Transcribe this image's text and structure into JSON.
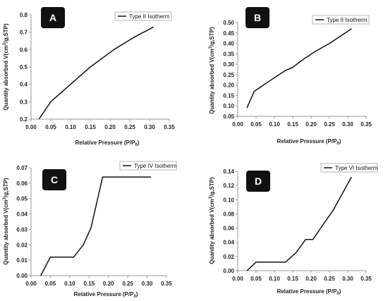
{
  "chart_data": [
    {
      "type": "line",
      "panel_label": "A",
      "series": [
        {
          "name": "Type II Isotherm",
          "x": [
            0.02,
            0.05,
            0.08,
            0.11,
            0.15,
            0.21,
            0.26,
            0.31
          ],
          "y": [
            0.2,
            0.3,
            0.36,
            0.42,
            0.5,
            0.6,
            0.67,
            0.73
          ]
        }
      ],
      "xlabel_main": "Relative Pressure (P/P",
      "xlabel_sub": "0",
      "xlabel_end": ")",
      "ylabel_a": "Quantity absorbed V(cm",
      "ylabel_sup": "3",
      "ylabel_b": "/g,STP)",
      "xlim": [
        0,
        0.35
      ],
      "ylim": [
        0.2,
        0.8
      ],
      "xticks": [
        "0.00",
        "0.05",
        "0.10",
        "0.15",
        "0.20",
        "0.25",
        "0.30",
        "0.35"
      ],
      "yticks": [
        "0.2",
        "0.3",
        "0.4",
        "0.5",
        "0.6",
        "0.7",
        "0.8"
      ],
      "legend_position": "top-right"
    },
    {
      "type": "line",
      "panel_label": "B",
      "series": [
        {
          "name": "Type II Isotherm",
          "x": [
            0.025,
            0.045,
            0.07,
            0.1,
            0.13,
            0.15,
            0.18,
            0.21,
            0.25,
            0.31
          ],
          "y": [
            0.09,
            0.17,
            0.2,
            0.235,
            0.27,
            0.285,
            0.325,
            0.36,
            0.4,
            0.47
          ]
        }
      ],
      "xlabel_main": "Relative Pressure (P/P",
      "xlabel_sub": "0",
      "xlabel_end": ")",
      "ylabel_a": "Quantity absorbed V(cm",
      "ylabel_sup": "3",
      "ylabel_b": "/g,STP)",
      "xlim": [
        0,
        0.35
      ],
      "ylim": [
        0.05,
        0.5
      ],
      "xticks": [
        "0.00",
        "0.05",
        "0.10",
        "0.15",
        "0.20",
        "0.25",
        "0.30",
        "0.35"
      ],
      "yticks": [
        "0.05",
        "0.10",
        "0.15",
        "0.20",
        "0.25",
        "0.30",
        "0.35",
        "0.40",
        "0.45",
        "0.50"
      ],
      "legend_position": "top-right"
    },
    {
      "type": "line",
      "panel_label": "C",
      "series": [
        {
          "name": "Type IV Isotherm",
          "x": [
            0.025,
            0.05,
            0.08,
            0.11,
            0.135,
            0.155,
            0.185,
            0.31
          ],
          "y": [
            0,
            0.012,
            0.012,
            0.012,
            0.02,
            0.031,
            0.064,
            0.064
          ]
        }
      ],
      "xlabel_main": "Relative Pressure (P/P",
      "xlabel_sub": "0",
      "xlabel_end": ")",
      "ylabel_a": "Quantity absorbed V(cm",
      "ylabel_sup": "3",
      "ylabel_b": "/g,STP)",
      "xlim": [
        0,
        0.35
      ],
      "ylim": [
        0,
        0.07
      ],
      "xticks": [
        "0.00",
        "0.05",
        "0.10",
        "0.15",
        "0.20",
        "0.25",
        "0.30",
        "0.35"
      ],
      "yticks": [
        "0.00",
        "0.01",
        "0.02",
        "0.03",
        "0.04",
        "0.05",
        "0.06",
        "0.07"
      ],
      "legend_position": "top-right"
    },
    {
      "type": "line",
      "panel_label": "D",
      "series": [
        {
          "name": "Type VI Isotherm",
          "x": [
            0.025,
            0.05,
            0.08,
            0.13,
            0.16,
            0.185,
            0.205,
            0.23,
            0.26,
            0.31
          ],
          "y": [
            0,
            0.012,
            0.012,
            0.012,
            0.026,
            0.044,
            0.044,
            0.063,
            0.085,
            0.132
          ]
        }
      ],
      "xlabel_main": "Relative Pressure (P/P",
      "xlabel_sub": "0",
      "xlabel_end": ")",
      "ylabel_a": "Quantity absorbed V(cm",
      "ylabel_sup": "3",
      "ylabel_b": "/g,STP)",
      "xlim": [
        0,
        0.35
      ],
      "ylim": [
        0,
        0.14
      ],
      "xticks": [
        "0.00",
        "0.05",
        "0.10",
        "0.15",
        "0.20",
        "0.25",
        "0.30",
        "0.35"
      ],
      "yticks": [
        "0.00",
        "0.02",
        "0.04",
        "0.06",
        "0.08",
        "0.10",
        "0.12",
        "0.14"
      ],
      "legend_position": "top-right"
    }
  ],
  "colors": {
    "line": "#111111",
    "axis": "#999999",
    "badge": "#111111"
  }
}
